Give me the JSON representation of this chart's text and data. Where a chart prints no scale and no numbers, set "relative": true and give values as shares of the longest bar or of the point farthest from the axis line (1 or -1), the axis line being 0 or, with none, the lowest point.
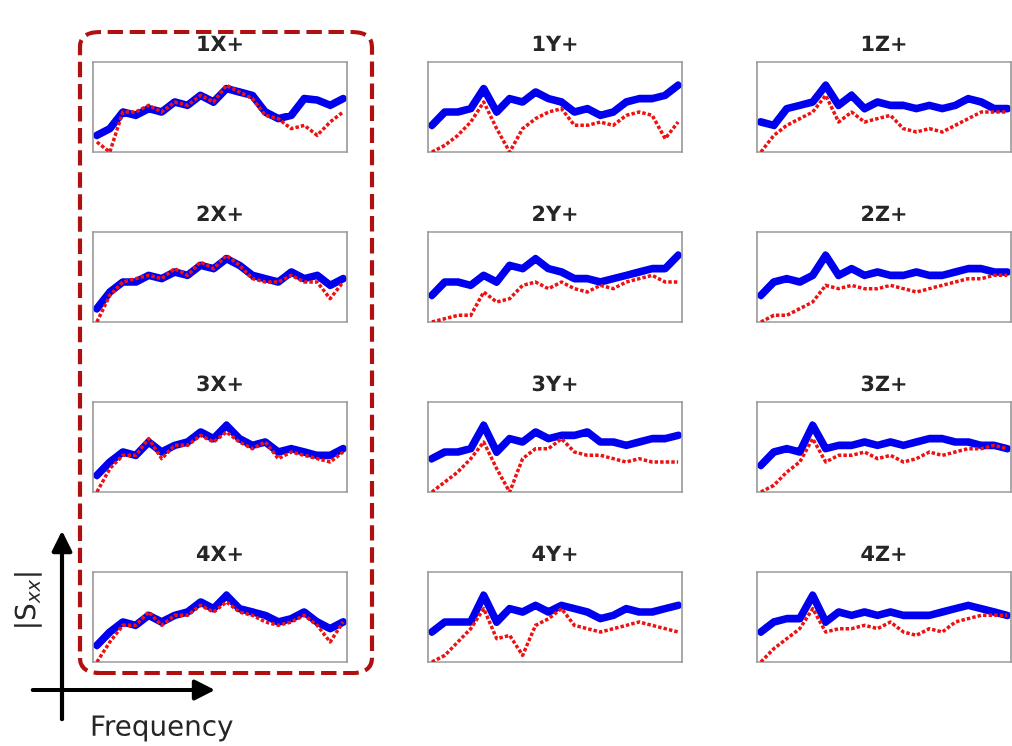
{
  "chart_data": [
    {
      "type": "line",
      "title": "1X+",
      "relative": true,
      "tick_labels": false,
      "categories": [
        null,
        null,
        null,
        null,
        null,
        null,
        null,
        null,
        null,
        null,
        null,
        null,
        null,
        null,
        null,
        null,
        null,
        null,
        null,
        null
      ],
      "series": [
        {
          "color": "#0000ee",
          "line_style": "solid",
          "values": [
            0.25,
            0.35,
            0.6,
            0.55,
            0.65,
            0.6,
            0.75,
            0.7,
            0.85,
            0.75,
            0.95,
            0.9,
            0.85,
            0.6,
            0.5,
            0.55,
            0.8,
            0.78,
            0.7,
            0.8
          ]
        },
        {
          "color": "#ee1111",
          "line_style": "dotted",
          "values": [
            0.15,
            0.0,
            0.6,
            0.6,
            0.7,
            0.6,
            0.75,
            0.7,
            0.85,
            0.75,
            1.0,
            0.9,
            0.8,
            0.55,
            0.5,
            0.35,
            0.4,
            0.25,
            0.45,
            0.6
          ]
        }
      ]
    },
    {
      "type": "line",
      "title": "1Y+",
      "relative": true,
      "tick_labels": false,
      "categories": [
        null,
        null,
        null,
        null,
        null,
        null,
        null,
        null,
        null,
        null,
        null,
        null,
        null,
        null,
        null,
        null,
        null,
        null,
        null,
        null
      ],
      "series": [
        {
          "color": "#0000ee",
          "line_style": "solid",
          "values": [
            0.4,
            0.6,
            0.6,
            0.65,
            0.95,
            0.6,
            0.8,
            0.75,
            0.9,
            0.8,
            0.75,
            0.6,
            0.65,
            0.55,
            0.6,
            0.75,
            0.8,
            0.8,
            0.85,
            1.0
          ]
        },
        {
          "color": "#ee1111",
          "line_style": "dotted",
          "values": [
            0.0,
            0.1,
            0.25,
            0.45,
            0.75,
            0.35,
            0.0,
            0.35,
            0.5,
            0.6,
            0.65,
            0.4,
            0.4,
            0.45,
            0.4,
            0.55,
            0.6,
            0.55,
            0.2,
            0.45
          ]
        }
      ]
    },
    {
      "type": "line",
      "title": "1Z+",
      "relative": true,
      "tick_labels": false,
      "categories": [
        null,
        null,
        null,
        null,
        null,
        null,
        null,
        null,
        null,
        null,
        null,
        null,
        null,
        null,
        null,
        null,
        null,
        null,
        null,
        null
      ],
      "series": [
        {
          "color": "#0000ee",
          "line_style": "solid",
          "values": [
            0.45,
            0.4,
            0.65,
            0.7,
            0.75,
            1.0,
            0.7,
            0.85,
            0.65,
            0.75,
            0.7,
            0.7,
            0.65,
            0.7,
            0.65,
            0.7,
            0.8,
            0.75,
            0.65,
            0.65
          ]
        },
        {
          "color": "#ee1111",
          "line_style": "dotted",
          "values": [
            0.0,
            0.25,
            0.4,
            0.5,
            0.6,
            0.85,
            0.45,
            0.6,
            0.45,
            0.5,
            0.55,
            0.35,
            0.3,
            0.35,
            0.3,
            0.4,
            0.5,
            0.6,
            0.6,
            0.6
          ]
        }
      ]
    },
    {
      "type": "line",
      "title": "2X+",
      "relative": true,
      "tick_labels": false,
      "categories": [
        null,
        null,
        null,
        null,
        null,
        null,
        null,
        null,
        null,
        null,
        null,
        null,
        null,
        null,
        null,
        null,
        null,
        null,
        null,
        null
      ],
      "series": [
        {
          "color": "#0000ee",
          "line_style": "solid",
          "values": [
            0.2,
            0.45,
            0.6,
            0.6,
            0.7,
            0.65,
            0.75,
            0.7,
            0.85,
            0.8,
            0.95,
            0.85,
            0.7,
            0.65,
            0.6,
            0.75,
            0.65,
            0.7,
            0.55,
            0.65
          ]
        },
        {
          "color": "#ee1111",
          "line_style": "dotted",
          "values": [
            0.0,
            0.4,
            0.6,
            0.65,
            0.7,
            0.65,
            0.8,
            0.7,
            0.9,
            0.8,
            1.0,
            0.85,
            0.65,
            0.6,
            0.6,
            0.7,
            0.6,
            0.6,
            0.35,
            0.6
          ]
        }
      ]
    },
    {
      "type": "line",
      "title": "2Y+",
      "relative": true,
      "tick_labels": false,
      "categories": [
        null,
        null,
        null,
        null,
        null,
        null,
        null,
        null,
        null,
        null,
        null,
        null,
        null,
        null,
        null,
        null,
        null,
        null,
        null,
        null
      ],
      "series": [
        {
          "color": "#0000ee",
          "line_style": "solid",
          "values": [
            0.4,
            0.6,
            0.6,
            0.55,
            0.7,
            0.6,
            0.85,
            0.8,
            0.95,
            0.8,
            0.75,
            0.65,
            0.65,
            0.6,
            0.65,
            0.7,
            0.75,
            0.8,
            0.8,
            1.0
          ]
        },
        {
          "color": "#ee1111",
          "line_style": "dotted",
          "values": [
            0.0,
            0.05,
            0.1,
            0.1,
            0.45,
            0.3,
            0.35,
            0.55,
            0.6,
            0.5,
            0.6,
            0.5,
            0.45,
            0.55,
            0.5,
            0.6,
            0.65,
            0.7,
            0.6,
            0.6
          ]
        }
      ]
    },
    {
      "type": "line",
      "title": "2Z+",
      "relative": true,
      "tick_labels": false,
      "categories": [
        null,
        null,
        null,
        null,
        null,
        null,
        null,
        null,
        null,
        null,
        null,
        null,
        null,
        null,
        null,
        null,
        null,
        null,
        null,
        null
      ],
      "series": [
        {
          "color": "#0000ee",
          "line_style": "solid",
          "values": [
            0.4,
            0.6,
            0.65,
            0.6,
            0.7,
            1.0,
            0.7,
            0.8,
            0.7,
            0.75,
            0.7,
            0.7,
            0.75,
            0.7,
            0.7,
            0.75,
            0.8,
            0.8,
            0.75,
            0.75
          ]
        },
        {
          "color": "#ee1111",
          "line_style": "dotted",
          "values": [
            0.0,
            0.1,
            0.1,
            0.2,
            0.3,
            0.55,
            0.5,
            0.55,
            0.5,
            0.5,
            0.55,
            0.5,
            0.45,
            0.5,
            0.55,
            0.6,
            0.65,
            0.65,
            0.7,
            0.7
          ]
        }
      ]
    },
    {
      "type": "line",
      "title": "3X+",
      "relative": true,
      "tick_labels": false,
      "categories": [
        null,
        null,
        null,
        null,
        null,
        null,
        null,
        null,
        null,
        null,
        null,
        null,
        null,
        null,
        null,
        null,
        null,
        null,
        null,
        null
      ],
      "series": [
        {
          "color": "#0000ee",
          "line_style": "solid",
          "values": [
            0.25,
            0.45,
            0.6,
            0.55,
            0.75,
            0.6,
            0.7,
            0.75,
            0.9,
            0.8,
            1.0,
            0.8,
            0.7,
            0.75,
            0.6,
            0.65,
            0.6,
            0.55,
            0.55,
            0.65
          ]
        },
        {
          "color": "#ee1111",
          "line_style": "dotted",
          "values": [
            0.0,
            0.35,
            0.55,
            0.55,
            0.8,
            0.5,
            0.7,
            0.7,
            0.85,
            0.75,
            0.9,
            0.75,
            0.65,
            0.75,
            0.5,
            0.6,
            0.55,
            0.5,
            0.45,
            0.6
          ]
        }
      ]
    },
    {
      "type": "line",
      "title": "3Y+",
      "relative": true,
      "tick_labels": false,
      "categories": [
        null,
        null,
        null,
        null,
        null,
        null,
        null,
        null,
        null,
        null,
        null,
        null,
        null,
        null,
        null,
        null,
        null,
        null,
        null,
        null
      ],
      "series": [
        {
          "color": "#0000ee",
          "line_style": "solid",
          "values": [
            0.5,
            0.6,
            0.6,
            0.65,
            1.0,
            0.6,
            0.8,
            0.75,
            0.9,
            0.8,
            0.85,
            0.85,
            0.9,
            0.75,
            0.75,
            0.7,
            0.75,
            0.8,
            0.8,
            0.85
          ]
        },
        {
          "color": "#ee1111",
          "line_style": "dotted",
          "values": [
            0.0,
            0.15,
            0.3,
            0.5,
            0.75,
            0.35,
            0.0,
            0.5,
            0.65,
            0.65,
            0.8,
            0.6,
            0.55,
            0.55,
            0.5,
            0.45,
            0.5,
            0.45,
            0.45,
            0.45
          ]
        }
      ]
    },
    {
      "type": "line",
      "title": "3Z+",
      "relative": true,
      "tick_labels": false,
      "categories": [
        null,
        null,
        null,
        null,
        null,
        null,
        null,
        null,
        null,
        null,
        null,
        null,
        null,
        null,
        null,
        null,
        null,
        null,
        null,
        null
      ],
      "series": [
        {
          "color": "#0000ee",
          "line_style": "solid",
          "values": [
            0.4,
            0.6,
            0.65,
            0.6,
            1.0,
            0.65,
            0.7,
            0.7,
            0.75,
            0.7,
            0.75,
            0.7,
            0.75,
            0.8,
            0.8,
            0.75,
            0.75,
            0.7,
            0.7,
            0.65
          ]
        },
        {
          "color": "#ee1111",
          "line_style": "dotted",
          "values": [
            0.0,
            0.1,
            0.3,
            0.45,
            0.8,
            0.45,
            0.55,
            0.55,
            0.6,
            0.5,
            0.55,
            0.45,
            0.5,
            0.6,
            0.55,
            0.6,
            0.65,
            0.65,
            0.7,
            0.65
          ]
        }
      ]
    },
    {
      "type": "line",
      "title": "4X+",
      "relative": true,
      "tick_labels": false,
      "xlabel": "Frequency",
      "ylabel": "|S$_{xx}$|",
      "categories": [
        null,
        null,
        null,
        null,
        null,
        null,
        null,
        null,
        null,
        null,
        null,
        null,
        null,
        null,
        null,
        null,
        null,
        null,
        null,
        null
      ],
      "series": [
        {
          "color": "#0000ee",
          "line_style": "solid",
          "values": [
            0.25,
            0.45,
            0.6,
            0.55,
            0.7,
            0.6,
            0.7,
            0.75,
            0.9,
            0.8,
            1.0,
            0.8,
            0.75,
            0.7,
            0.6,
            0.65,
            0.75,
            0.6,
            0.5,
            0.6
          ]
        },
        {
          "color": "#ee1111",
          "line_style": "dotted",
          "values": [
            0.0,
            0.3,
            0.55,
            0.55,
            0.75,
            0.55,
            0.7,
            0.7,
            0.85,
            0.75,
            0.9,
            0.75,
            0.7,
            0.6,
            0.55,
            0.6,
            0.7,
            0.55,
            0.3,
            0.6
          ]
        }
      ]
    },
    {
      "type": "line",
      "title": "4Y+",
      "relative": true,
      "tick_labels": false,
      "categories": [
        null,
        null,
        null,
        null,
        null,
        null,
        null,
        null,
        null,
        null,
        null,
        null,
        null,
        null,
        null,
        null,
        null,
        null,
        null,
        null
      ],
      "series": [
        {
          "color": "#0000ee",
          "line_style": "solid",
          "values": [
            0.45,
            0.6,
            0.6,
            0.6,
            1.0,
            0.6,
            0.8,
            0.75,
            0.85,
            0.75,
            0.85,
            0.8,
            0.75,
            0.65,
            0.7,
            0.8,
            0.75,
            0.75,
            0.8,
            0.85
          ]
        },
        {
          "color": "#ee1111",
          "line_style": "dotted",
          "values": [
            0.0,
            0.1,
            0.3,
            0.5,
            0.8,
            0.35,
            0.4,
            0.1,
            0.55,
            0.65,
            0.8,
            0.55,
            0.5,
            0.45,
            0.5,
            0.55,
            0.6,
            0.55,
            0.5,
            0.45
          ]
        }
      ]
    },
    {
      "type": "line",
      "title": "4Z+",
      "relative": true,
      "tick_labels": false,
      "categories": [
        null,
        null,
        null,
        null,
        null,
        null,
        null,
        null,
        null,
        null,
        null,
        null,
        null,
        null,
        null,
        null,
        null,
        null,
        null,
        null
      ],
      "series": [
        {
          "color": "#0000ee",
          "line_style": "solid",
          "values": [
            0.45,
            0.6,
            0.65,
            0.65,
            1.0,
            0.6,
            0.75,
            0.7,
            0.75,
            0.7,
            0.75,
            0.7,
            0.7,
            0.7,
            0.75,
            0.8,
            0.85,
            0.8,
            0.75,
            0.7
          ]
        },
        {
          "color": "#ee1111",
          "line_style": "dotted",
          "values": [
            0.0,
            0.2,
            0.35,
            0.5,
            0.8,
            0.45,
            0.5,
            0.5,
            0.55,
            0.5,
            0.6,
            0.45,
            0.4,
            0.5,
            0.45,
            0.6,
            0.65,
            0.7,
            0.7,
            0.7
          ]
        }
      ]
    }
  ]
}
